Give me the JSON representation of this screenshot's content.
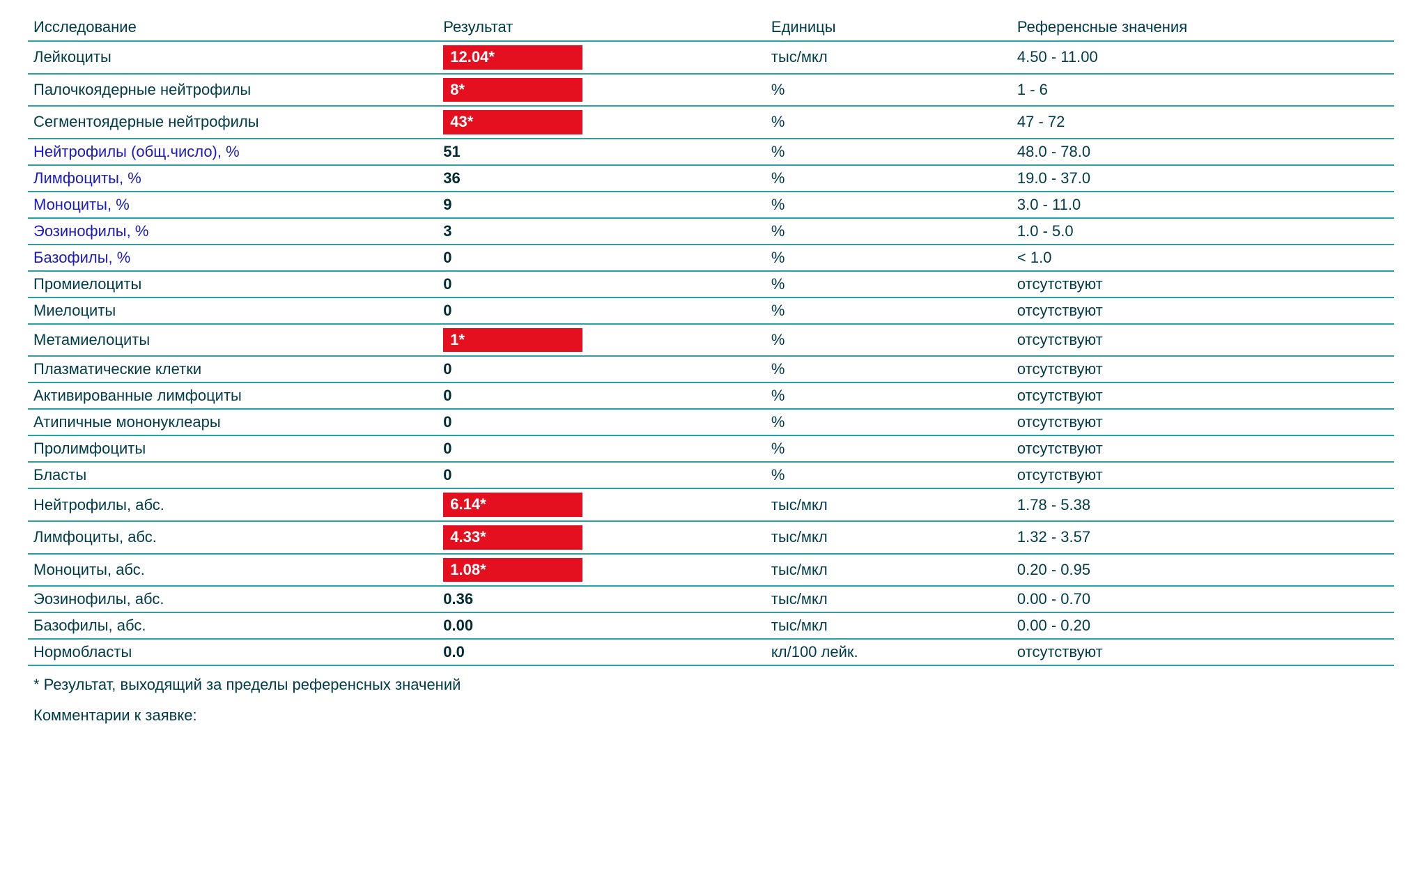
{
  "colors": {
    "text": "#003b4a",
    "link": "#1a1ac0",
    "rule": "#2aa0a0",
    "flag_bg": "#e4101f",
    "flag_text": "#ffffff",
    "background": "#ffffff"
  },
  "typography": {
    "font_family": "Verdana, Tahoma, Arial, sans-serif",
    "font_size_pt": 16
  },
  "table": {
    "columns": [
      {
        "key": "name",
        "label": "Исследование",
        "width_pct": 30
      },
      {
        "key": "result",
        "label": "Результат",
        "width_pct": 24
      },
      {
        "key": "units",
        "label": "Единицы",
        "width_pct": 18
      },
      {
        "key": "ref",
        "label": "Референсные значения",
        "width_pct": 28
      }
    ],
    "rows": [
      {
        "name": "Лейкоциты",
        "name_style": "dark",
        "result": "12.04*",
        "flagged": true,
        "units": "тыс/мкл",
        "ref": "4.50 - 11.00"
      },
      {
        "name": "Палочкоядерные нейтрофилы",
        "name_style": "dark",
        "result": "8*",
        "flagged": true,
        "units": "%",
        "ref": "1 - 6"
      },
      {
        "name": "Сегментоядерные нейтрофилы",
        "name_style": "dark",
        "result": "43*",
        "flagged": true,
        "units": "%",
        "ref": "47 - 72"
      },
      {
        "name": "Нейтрофилы (общ.число), %",
        "name_style": "link",
        "result": "51",
        "flagged": false,
        "units": "%",
        "ref": "48.0 - 78.0"
      },
      {
        "name": "Лимфоциты, %",
        "name_style": "link",
        "result": "36",
        "flagged": false,
        "units": "%",
        "ref": "19.0 - 37.0"
      },
      {
        "name": "Моноциты, %",
        "name_style": "link",
        "result": "9",
        "flagged": false,
        "units": "%",
        "ref": "3.0 - 11.0"
      },
      {
        "name": "Эозинофилы, %",
        "name_style": "link",
        "result": "3",
        "flagged": false,
        "units": "%",
        "ref": "1.0 - 5.0"
      },
      {
        "name": "Базофилы, %",
        "name_style": "link",
        "result": "0",
        "flagged": false,
        "units": "%",
        "ref": "< 1.0"
      },
      {
        "name": "Промиелоциты",
        "name_style": "dark",
        "result": "0",
        "flagged": false,
        "units": "%",
        "ref": "отсутствуют"
      },
      {
        "name": "Миелоциты",
        "name_style": "dark",
        "result": "0",
        "flagged": false,
        "units": "%",
        "ref": "отсутствуют"
      },
      {
        "name": "Метамиелоциты",
        "name_style": "dark",
        "result": "1*",
        "flagged": true,
        "units": "%",
        "ref": "отсутствуют"
      },
      {
        "name": "Плазматические клетки",
        "name_style": "dark",
        "result": "0",
        "flagged": false,
        "units": "%",
        "ref": "отсутствуют"
      },
      {
        "name": "Активированные лимфоциты",
        "name_style": "dark",
        "result": "0",
        "flagged": false,
        "units": "%",
        "ref": "отсутствуют"
      },
      {
        "name": "Атипичные мононуклеары",
        "name_style": "dark",
        "result": "0",
        "flagged": false,
        "units": "%",
        "ref": "отсутствуют"
      },
      {
        "name": "Пролимфоциты",
        "name_style": "dark",
        "result": "0",
        "flagged": false,
        "units": "%",
        "ref": "отсутствуют"
      },
      {
        "name": "Бласты",
        "name_style": "dark",
        "result": "0",
        "flagged": false,
        "units": "%",
        "ref": "отсутствуют"
      },
      {
        "name": "Нейтрофилы, абс.",
        "name_style": "dark",
        "result": "6.14*",
        "flagged": true,
        "units": "тыс/мкл",
        "ref": "1.78 - 5.38"
      },
      {
        "name": "Лимфоциты, абс.",
        "name_style": "dark",
        "result": "4.33*",
        "flagged": true,
        "units": "тыс/мкл",
        "ref": "1.32 - 3.57"
      },
      {
        "name": "Моноциты, абс.",
        "name_style": "dark",
        "result": "1.08*",
        "flagged": true,
        "units": "тыс/мкл",
        "ref": "0.20 - 0.95"
      },
      {
        "name": "Эозинофилы, абс.",
        "name_style": "dark",
        "result": "0.36",
        "flagged": false,
        "units": "тыс/мкл",
        "ref": "0.00 - 0.70"
      },
      {
        "name": "Базофилы, абс.",
        "name_style": "dark",
        "result": "0.00",
        "flagged": false,
        "units": "тыс/мкл",
        "ref": "0.00 - 0.20"
      },
      {
        "name": "Нормобласты",
        "name_style": "dark",
        "result": "0.0",
        "flagged": false,
        "units": "кл/100 лейк.",
        "ref": "отсутствуют"
      }
    ]
  },
  "footnote": "* Результат, выходящий за пределы референсных значений",
  "comments_label": "Комментарии к заявке:"
}
